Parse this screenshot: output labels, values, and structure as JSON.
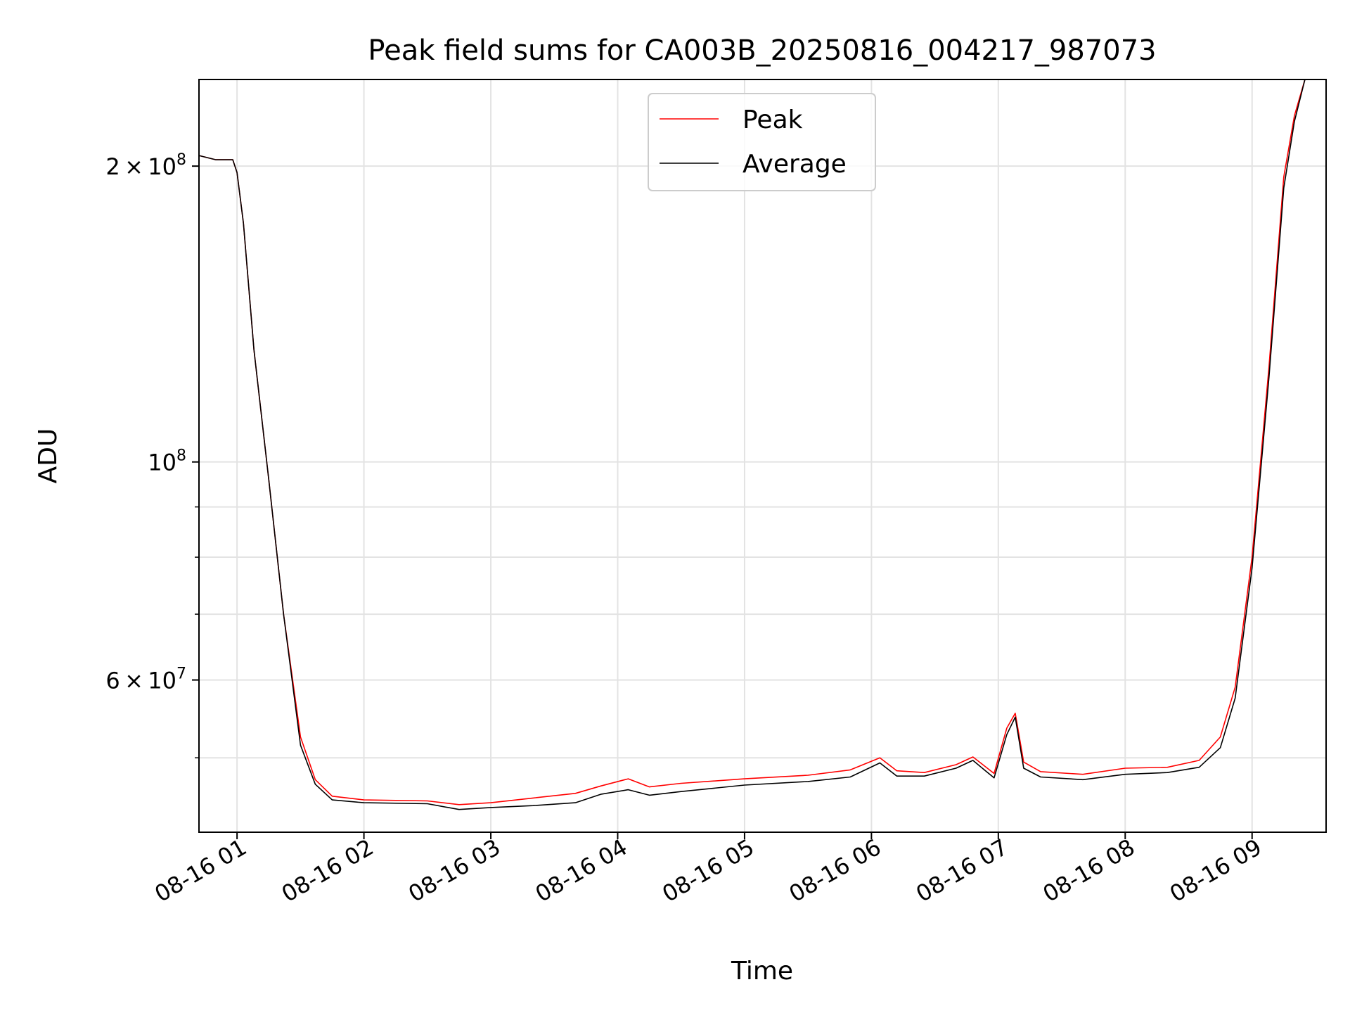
{
  "chart_data": {
    "type": "line",
    "title": "Peak field sums for CA003B_20250816_004217_987073",
    "xlabel": "Time",
    "ylabel": "ADU",
    "y_scale": "log",
    "ylim": [
      42000000,
      245000000
    ],
    "xlim": [
      "2025-08-16 00:42",
      "2025-08-16 09:35"
    ],
    "grid": true,
    "legend": {
      "placement": "upper-center"
    },
    "x_ticks": [
      "2025-08-16 01:00",
      "2025-08-16 02:00",
      "2025-08-16 03:00",
      "2025-08-16 04:00",
      "2025-08-16 05:00",
      "2025-08-16 06:00",
      "2025-08-16 07:00",
      "2025-08-16 08:00",
      "2025-08-16 09:00"
    ],
    "x_tick_labels": [
      "08-16 01",
      "08-16 02",
      "08-16 03",
      "08-16 04",
      "08-16 05",
      "08-16 06",
      "08-16 07",
      "08-16 08",
      "08-16 09"
    ],
    "y_major_ticks": [
      {
        "value": 60000000,
        "mant": "6",
        "exp": "7"
      },
      {
        "value": 100000000,
        "mant": "",
        "exp": "8"
      },
      {
        "value": 200000000,
        "mant": "2",
        "exp": "8"
      }
    ],
    "y_minor_ticks": [
      50000000,
      70000000,
      80000000,
      90000000
    ],
    "series": [
      {
        "name": "Peak",
        "color": "#ff0000",
        "x": [
          "2025-08-16 00:42",
          "2025-08-16 00:50",
          "2025-08-16 00:55",
          "2025-08-16 00:58",
          "2025-08-16 01:00",
          "2025-08-16 01:03",
          "2025-08-16 01:08",
          "2025-08-16 01:15",
          "2025-08-16 01:22",
          "2025-08-16 01:30",
          "2025-08-16 01:37",
          "2025-08-16 01:45",
          "2025-08-16 02:00",
          "2025-08-16 02:30",
          "2025-08-16 02:45",
          "2025-08-16 03:00",
          "2025-08-16 03:20",
          "2025-08-16 03:40",
          "2025-08-16 03:52",
          "2025-08-16 04:05",
          "2025-08-16 04:15",
          "2025-08-16 04:30",
          "2025-08-16 05:00",
          "2025-08-16 05:30",
          "2025-08-16 05:50",
          "2025-08-16 06:04",
          "2025-08-16 06:12",
          "2025-08-16 06:25",
          "2025-08-16 06:40",
          "2025-08-16 06:48",
          "2025-08-16 06:58",
          "2025-08-16 07:04",
          "2025-08-16 07:08",
          "2025-08-16 07:12",
          "2025-08-16 07:20",
          "2025-08-16 07:40",
          "2025-08-16 08:00",
          "2025-08-16 08:20",
          "2025-08-16 08:35",
          "2025-08-16 08:45",
          "2025-08-16 08:52",
          "2025-08-16 09:00",
          "2025-08-16 09:08",
          "2025-08-16 09:15",
          "2025-08-16 09:20",
          "2025-08-16 09:25"
        ],
        "y": [
          205000000,
          203000000,
          203000000,
          203000000,
          197000000,
          175000000,
          130000000,
          96000000,
          70000000,
          52500000,
          47500000,
          45700000,
          45300000,
          45200000,
          44800000,
          45000000,
          45500000,
          46000000,
          46800000,
          47600000,
          46700000,
          47100000,
          47600000,
          48000000,
          48600000,
          50000000,
          48500000,
          48300000,
          49200000,
          50100000,
          48200000,
          53600000,
          55500000,
          49500000,
          48400000,
          48100000,
          48800000,
          48900000,
          49700000,
          52500000,
          59000000,
          80000000,
          125000000,
          195000000,
          225000000,
          245000000
        ]
      },
      {
        "name": "Average",
        "color": "#000000",
        "x": [
          "2025-08-16 00:42",
          "2025-08-16 00:50",
          "2025-08-16 00:55",
          "2025-08-16 00:58",
          "2025-08-16 01:00",
          "2025-08-16 01:03",
          "2025-08-16 01:08",
          "2025-08-16 01:15",
          "2025-08-16 01:22",
          "2025-08-16 01:30",
          "2025-08-16 01:37",
          "2025-08-16 01:45",
          "2025-08-16 02:00",
          "2025-08-16 02:30",
          "2025-08-16 02:45",
          "2025-08-16 03:00",
          "2025-08-16 03:20",
          "2025-08-16 03:40",
          "2025-08-16 03:52",
          "2025-08-16 04:05",
          "2025-08-16 04:15",
          "2025-08-16 04:30",
          "2025-08-16 05:00",
          "2025-08-16 05:30",
          "2025-08-16 05:50",
          "2025-08-16 06:04",
          "2025-08-16 06:12",
          "2025-08-16 06:25",
          "2025-08-16 06:40",
          "2025-08-16 06:48",
          "2025-08-16 06:58",
          "2025-08-16 07:04",
          "2025-08-16 07:08",
          "2025-08-16 07:12",
          "2025-08-16 07:20",
          "2025-08-16 07:40",
          "2025-08-16 08:00",
          "2025-08-16 08:20",
          "2025-08-16 08:35",
          "2025-08-16 08:45",
          "2025-08-16 08:52",
          "2025-08-16 09:00",
          "2025-08-16 09:08",
          "2025-08-16 09:15",
          "2025-08-16 09:20",
          "2025-08-16 09:25"
        ],
        "y": [
          205000000,
          203000000,
          203000000,
          203000000,
          197000000,
          175000000,
          130000000,
          96000000,
          70000000,
          51500000,
          47000000,
          45300000,
          45000000,
          44900000,
          44300000,
          44500000,
          44700000,
          45000000,
          45900000,
          46400000,
          45800000,
          46200000,
          46900000,
          47300000,
          47800000,
          49400000,
          47900000,
          47900000,
          48800000,
          49700000,
          47700000,
          52800000,
          55000000,
          48800000,
          47800000,
          47500000,
          48100000,
          48300000,
          48900000,
          51200000,
          57500000,
          78000000,
          122000000,
          190000000,
          222000000,
          245000000
        ]
      }
    ]
  }
}
